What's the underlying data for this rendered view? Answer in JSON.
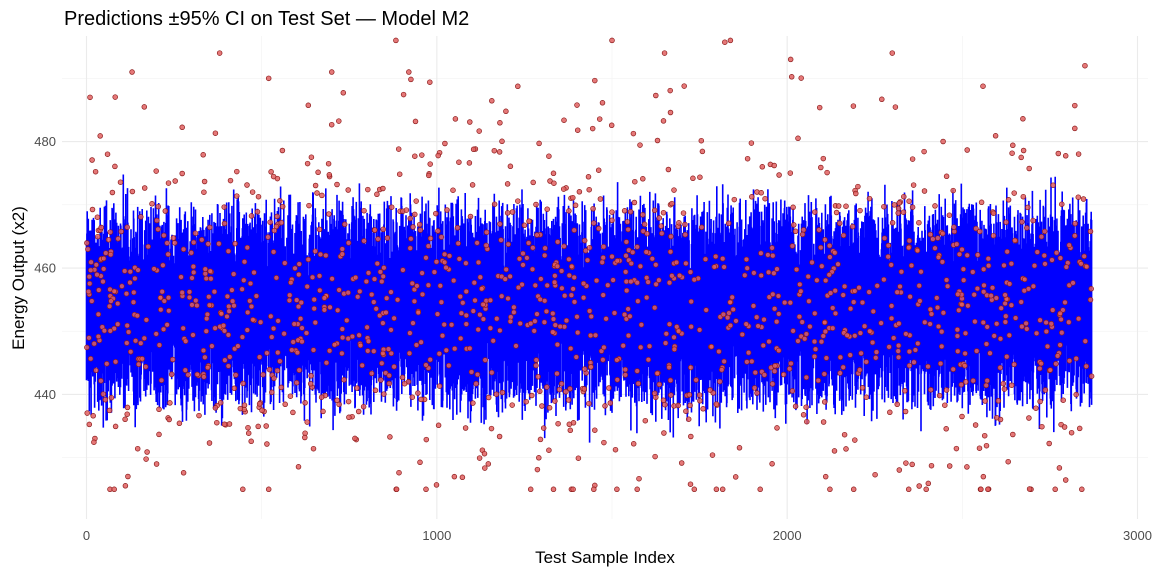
{
  "chart_data": {
    "type": "line",
    "title": "Predictions ±95% CI on Test Set — Model M2",
    "xlabel": "Test Sample Index",
    "ylabel": "Energy Output (x2)",
    "xlim": [
      -70,
      3030
    ],
    "ylim": [
      420.3,
      496.7
    ],
    "x_ticks": [
      "0",
      "1000",
      "2000",
      "3000"
    ],
    "x_tick_values": [
      0,
      1000,
      2000,
      3000
    ],
    "y_ticks": [
      "440",
      "460",
      "480"
    ],
    "y_tick_values": [
      440,
      460,
      480
    ],
    "grid": true,
    "legend": "none",
    "n_samples": 2870,
    "series": [
      {
        "kind": "line",
        "description": "prediction interval (vertical segments per index)",
        "color": "#0000ff",
        "center_mean": 454,
        "band_halfwidth_typical": 8,
        "range": [
          426,
          484
        ]
      },
      {
        "kind": "scatter",
        "description": "observed test values",
        "fill": "#e06060",
        "stroke": "#8b1a1a",
        "mean": 454,
        "range": [
          425,
          496
        ]
      }
    ],
    "sample_points_observed": [
      {
        "x": 10,
        "y": 487
      },
      {
        "x": 60,
        "y": 478
      },
      {
        "x": 130,
        "y": 491
      },
      {
        "x": 200,
        "y": 429
      },
      {
        "x": 380,
        "y": 494
      },
      {
        "x": 520,
        "y": 490
      },
      {
        "x": 700,
        "y": 491
      },
      {
        "x": 920,
        "y": 491
      },
      {
        "x": 1050,
        "y": 427
      },
      {
        "x": 1500,
        "y": 496
      },
      {
        "x": 1650,
        "y": 494
      },
      {
        "x": 2010,
        "y": 493
      },
      {
        "x": 2110,
        "y": 427
      },
      {
        "x": 2300,
        "y": 494
      },
      {
        "x": 2560,
        "y": 427
      },
      {
        "x": 2850,
        "y": 492
      }
    ]
  }
}
